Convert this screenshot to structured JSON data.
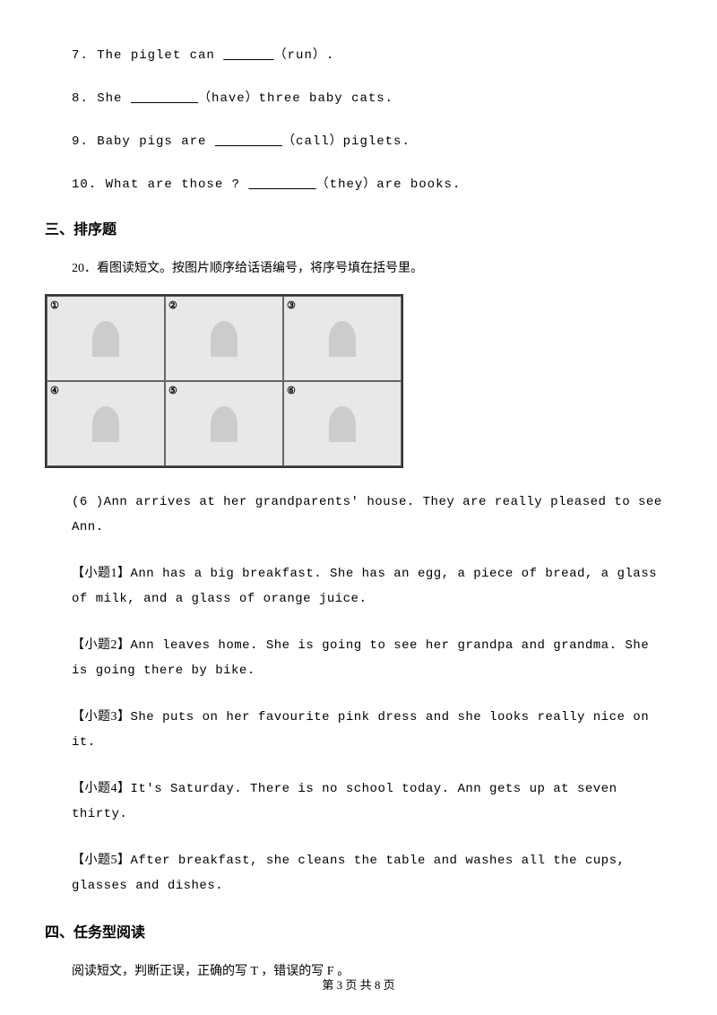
{
  "fill_questions": [
    {
      "num": "7",
      "pre": ". The piglet can ",
      "blank": "      ",
      "post": "（run）."
    },
    {
      "num": "8",
      "pre": ". She ",
      "blank": "        ",
      "post": "（have）three baby cats."
    },
    {
      "num": "9",
      "pre": ". Baby pigs are ",
      "blank": "        ",
      "post": "（call）piglets."
    },
    {
      "num": "10",
      "pre": ". What are those ? ",
      "blank": "        ",
      "post": "（they）are books."
    }
  ],
  "section3": {
    "heading": "三、排序题",
    "instruction": "20．看图读短文。按图片顺序给话语编号，将序号填在括号里。",
    "cells": [
      "①",
      "②",
      "③",
      "④",
      "⑤",
      "⑥"
    ],
    "preline": "(6 )Ann arrives at her grandparents'  house. They are really pleased to see Ann.",
    "subs": [
      {
        "label": "【小题1】",
        "text": "Ann has a big breakfast. She has an egg, a piece of bread, a glass of milk, and a glass of orange juice."
      },
      {
        "label": "【小题2】",
        "text": "Ann leaves home. She is going to see her grandpa and grandma. She is going there by bike."
      },
      {
        "label": "【小题3】",
        "text": "She puts on her favourite pink dress and she looks really nice on it."
      },
      {
        "label": "【小题4】",
        "text": "It's Saturday. There is no school today. Ann gets up at seven thirty."
      },
      {
        "label": "【小题5】",
        "text": "After breakfast, she cleans the table and washes all the cups, glasses and dishes."
      }
    ]
  },
  "section4": {
    "heading": "四、任务型阅读",
    "instruction": "阅读短文，判断正误，正确的写 T ，错误的写 F 。"
  },
  "footer": "第 3 页 共 8 页"
}
